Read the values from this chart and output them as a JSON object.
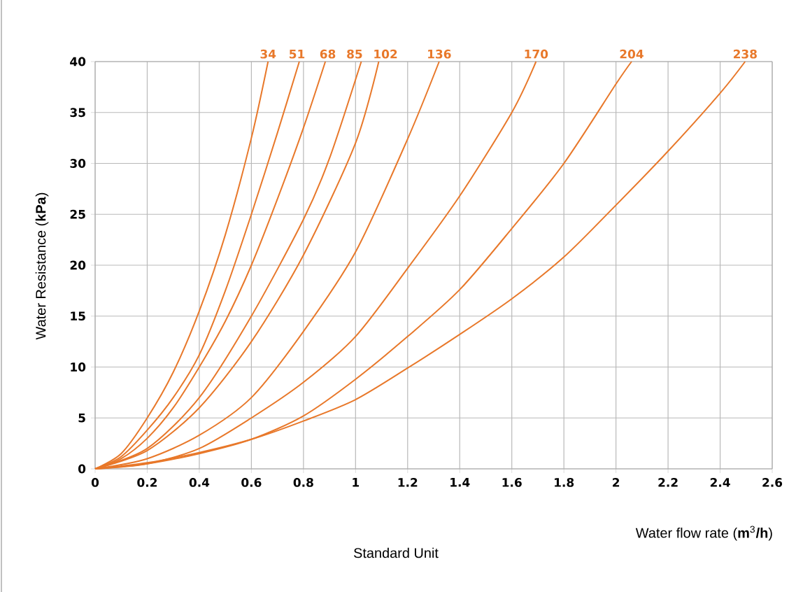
{
  "chart_data": {
    "type": "line",
    "xlabel": "Water flow rate (**m**$^{3}$**/h**)",
    "ylabel": "Water Resistance (**kPa**)",
    "annotations": [
      "Standard Unit"
    ],
    "xlim": [
      0,
      2.6
    ],
    "xticks": [
      0,
      0.2,
      0.4,
      0.6,
      0.8,
      1,
      1.2,
      1.4,
      1.6,
      1.8,
      2,
      2.2,
      2.4,
      2.6
    ],
    "ylim": [
      0,
      40
    ],
    "yticks": [
      0,
      5,
      10,
      15,
      20,
      25,
      30,
      35,
      40
    ],
    "grid": true,
    "legend": false,
    "marker": "none",
    "line_style": "solid",
    "series": [
      {
        "name": "34",
        "color": "#e8782a",
        "x": [
          0,
          0.1,
          0.2,
          0.3,
          0.4,
          0.5,
          0.6,
          0.664
        ],
        "values": [
          0,
          1.5,
          5,
          9.5,
          15.5,
          23,
          32.5,
          40
        ]
      },
      {
        "name": "51",
        "color": "#e8782a",
        "x": [
          0,
          0.1,
          0.2,
          0.3,
          0.4,
          0.5,
          0.6,
          0.7,
          0.784
        ],
        "values": [
          0,
          1.2,
          3.8,
          7,
          11.2,
          17.5,
          25,
          33,
          40
        ]
      },
      {
        "name": "68",
        "color": "#e8782a",
        "x": [
          0,
          0.1,
          0.2,
          0.3,
          0.4,
          0.5,
          0.6,
          0.7,
          0.8,
          0.884
        ],
        "values": [
          0,
          1,
          3,
          6,
          10,
          14.5,
          20,
          26.5,
          33.5,
          40
        ]
      },
      {
        "name": "85",
        "color": "#e8782a",
        "x": [
          0,
          0.2,
          0.4,
          0.6,
          0.8,
          0.9,
          1.022
        ],
        "values": [
          0,
          2,
          7,
          15,
          24.5,
          30.5,
          40
        ]
      },
      {
        "name": "102",
        "color": "#e8782a",
        "x": [
          0,
          0.2,
          0.4,
          0.6,
          0.8,
          1.0,
          1.089
        ],
        "values": [
          0,
          1.8,
          6,
          12.5,
          21,
          32,
          40
        ]
      },
      {
        "name": "136",
        "color": "#e8782a",
        "x": [
          0,
          0.2,
          0.4,
          0.6,
          0.8,
          1.0,
          1.2,
          1.321
        ],
        "values": [
          0,
          1,
          3.3,
          7,
          13.5,
          21.3,
          32.4,
          40
        ]
      },
      {
        "name": "170",
        "color": "#e8782a",
        "x": [
          0,
          0.2,
          0.4,
          0.6,
          0.8,
          1.0,
          1.2,
          1.4,
          1.6,
          1.693
        ],
        "values": [
          0,
          0.5,
          2,
          5,
          8.5,
          13,
          19.7,
          26.8,
          35,
          40
        ]
      },
      {
        "name": "204",
        "color": "#e8782a",
        "x": [
          0,
          0.2,
          0.4,
          0.6,
          0.8,
          1.0,
          1.2,
          1.4,
          1.6,
          1.8,
          2.0,
          2.06
        ],
        "values": [
          0,
          0.5,
          1.5,
          2.9,
          5.2,
          8.8,
          13,
          17.6,
          23.6,
          30,
          37.8,
          40
        ]
      },
      {
        "name": "238",
        "color": "#e8782a",
        "x": [
          0,
          0.2,
          0.4,
          0.6,
          0.8,
          1.0,
          1.2,
          1.4,
          1.6,
          1.8,
          2.0,
          2.2,
          2.4,
          2.496
        ],
        "values": [
          0,
          0.6,
          1.6,
          2.9,
          4.7,
          6.8,
          9.9,
          13.2,
          16.7,
          20.8,
          25.9,
          31.2,
          36.9,
          40
        ]
      }
    ]
  }
}
